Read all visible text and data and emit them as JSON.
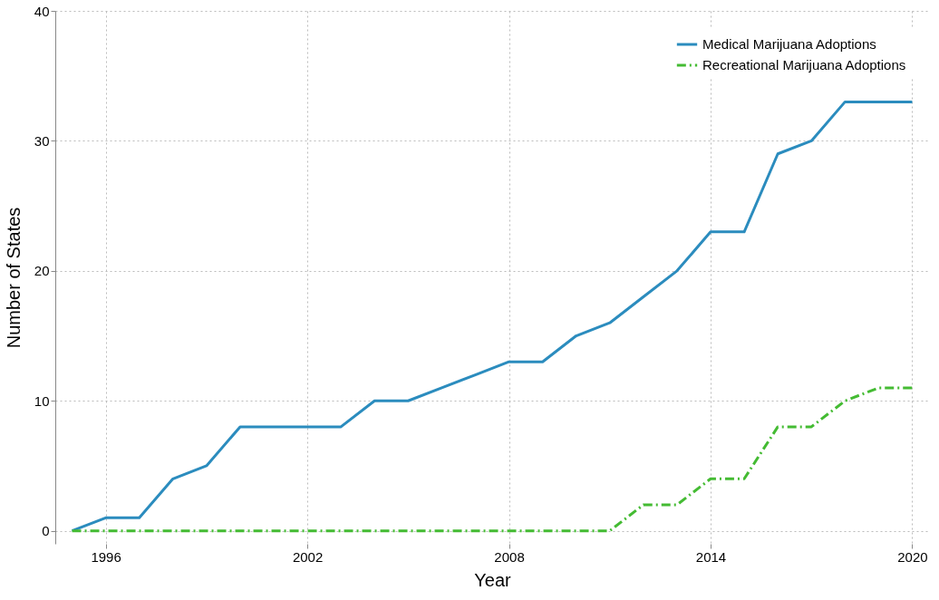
{
  "chart_data": {
    "type": "line",
    "xlabel": "Year",
    "ylabel": "Number of States",
    "x": [
      1995,
      1996,
      1997,
      1998,
      1999,
      2000,
      2001,
      2002,
      2003,
      2004,
      2005,
      2006,
      2007,
      2008,
      2009,
      2010,
      2011,
      2012,
      2013,
      2014,
      2015,
      2016,
      2017,
      2018,
      2019,
      2020
    ],
    "series": [
      {
        "name": "Medical Marijuana Adoptions",
        "color": "#2b8cbe",
        "line_style": "solid",
        "values": [
          0,
          1,
          1,
          4,
          5,
          8,
          8,
          8,
          8,
          10,
          10,
          11,
          12,
          13,
          13,
          15,
          16,
          18,
          20,
          23,
          23,
          29,
          30,
          33,
          33,
          33
        ]
      },
      {
        "name": "Recreational Marijuana Adoptions",
        "color": "#44bb33",
        "line_style": "dashed",
        "values": [
          0,
          0,
          0,
          0,
          0,
          0,
          0,
          0,
          0,
          0,
          0,
          0,
          0,
          0,
          0,
          0,
          0,
          2,
          2,
          4,
          4,
          8,
          8,
          10,
          11,
          11
        ]
      }
    ],
    "xlim": [
      1994.5,
      2020.5
    ],
    "xticks": [
      1996,
      2002,
      2008,
      2014,
      2020
    ],
    "ylim": [
      -1,
      40
    ],
    "yticks": [
      0,
      10,
      20,
      30,
      40
    ],
    "grid": true,
    "legend": "top right",
    "marker": "none"
  }
}
